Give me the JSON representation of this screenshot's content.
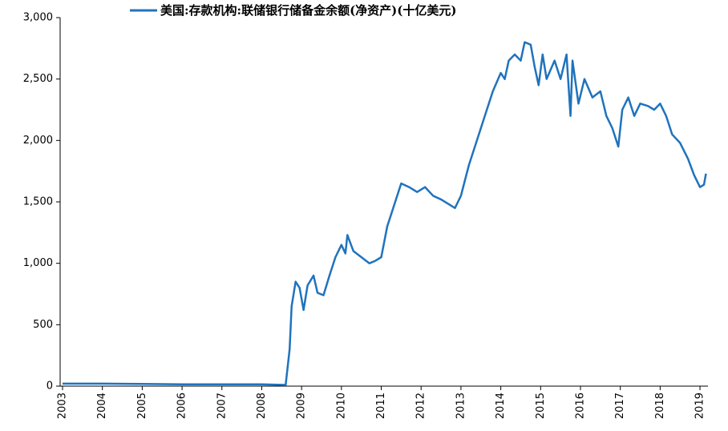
{
  "chart_data": {
    "type": "line",
    "legend_position": "top",
    "x": [
      2003.0,
      2004.0,
      2005.0,
      2006.0,
      2007.0,
      2008.0,
      2008.6,
      2008.7,
      2008.75,
      2008.85,
      2008.95,
      2009.05,
      2009.15,
      2009.3,
      2009.4,
      2009.55,
      2009.7,
      2009.85,
      2010.0,
      2010.1,
      2010.15,
      2010.3,
      2010.5,
      2010.7,
      2010.85,
      2011.0,
      2011.15,
      2011.35,
      2011.5,
      2011.7,
      2011.9,
      2012.1,
      2012.3,
      2012.5,
      2012.7,
      2012.85,
      2013.0,
      2013.2,
      2013.4,
      2013.6,
      2013.8,
      2014.0,
      2014.1,
      2014.2,
      2014.35,
      2014.5,
      2014.6,
      2014.75,
      2014.85,
      2014.95,
      2015.05,
      2015.15,
      2015.35,
      2015.5,
      2015.65,
      2015.75,
      2015.8,
      2015.95,
      2016.1,
      2016.3,
      2016.5,
      2016.65,
      2016.8,
      2016.95,
      2017.05,
      2017.2,
      2017.35,
      2017.5,
      2017.7,
      2017.85,
      2018.0,
      2018.15,
      2018.3,
      2018.5,
      2018.7,
      2018.85,
      2019.0,
      2019.1,
      2019.15
    ],
    "series": [
      {
        "name": "美国:存款机构:联储银行储备金余额(净资产)(十亿美元)",
        "color": "#1f73bd",
        "values": [
          20,
          20,
          18,
          15,
          15,
          15,
          10,
          300,
          650,
          850,
          800,
          620,
          820,
          900,
          760,
          740,
          900,
          1050,
          1150,
          1080,
          1230,
          1100,
          1050,
          1000,
          1020,
          1050,
          1300,
          1500,
          1650,
          1620,
          1580,
          1620,
          1550,
          1520,
          1480,
          1450,
          1550,
          1800,
          2000,
          2200,
          2400,
          2550,
          2500,
          2650,
          2700,
          2650,
          2800,
          2780,
          2600,
          2450,
          2700,
          2500,
          2650,
          2500,
          2700,
          2200,
          2650,
          2300,
          2500,
          2350,
          2400,
          2200,
          2100,
          1950,
          2250,
          2350,
          2200,
          2300,
          2280,
          2250,
          2300,
          2200,
          2050,
          1980,
          1850,
          1720,
          1620,
          1640,
          1730
        ]
      }
    ],
    "xlim": [
      2003,
      2019.2
    ],
    "xticks": [
      2003,
      2004,
      2005,
      2006,
      2007,
      2008,
      2009,
      2010,
      2011,
      2012,
      2013,
      2014,
      2015,
      2016,
      2017,
      2018,
      2019
    ],
    "ylim": [
      0,
      3000
    ],
    "yticks": [
      0,
      500,
      {
        "value": 1000,
        "label": "1,000"
      },
      {
        "value": 1500,
        "label": "1,500"
      },
      {
        "value": 2000,
        "label": "2,000"
      },
      {
        "value": 2500,
        "label": "2,500"
      },
      {
        "value": 3000,
        "label": "3,000"
      }
    ]
  }
}
